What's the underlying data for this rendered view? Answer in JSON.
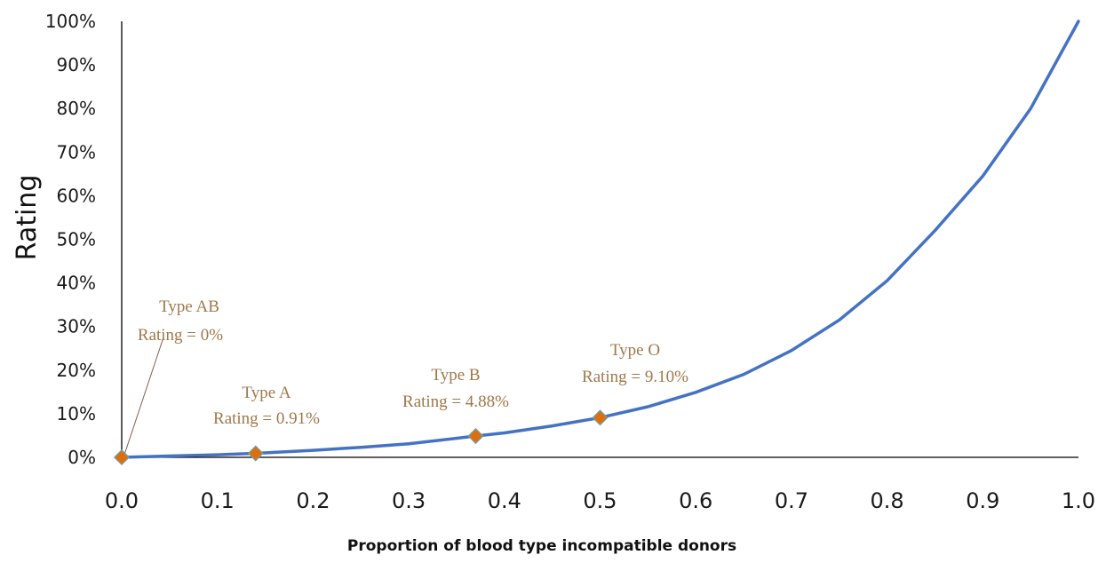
{
  "chart_data": {
    "type": "line",
    "xlabel": "Proportion of blood type incompatible donors",
    "ylabel": "Rating",
    "xlim": [
      0,
      1
    ],
    "ylim": [
      0,
      100
    ],
    "x_ticks": [
      "0.0",
      "0.1",
      "0.2",
      "0.3",
      "0.4",
      "0.5",
      "0.6",
      "0.7",
      "0.8",
      "0.9",
      "1.0"
    ],
    "y_ticks": [
      "0%",
      "10%",
      "20%",
      "30%",
      "40%",
      "50%",
      "60%",
      "70%",
      "80%",
      "90%",
      "100%"
    ],
    "curve": {
      "color": "#4472c4",
      "x": [
        0.0,
        0.05,
        0.1,
        0.14,
        0.2,
        0.25,
        0.3,
        0.37,
        0.4,
        0.45,
        0.5,
        0.55,
        0.6,
        0.65,
        0.7,
        0.75,
        0.8,
        0.85,
        0.9,
        0.95,
        1.0
      ],
      "y": [
        0.0,
        0.3,
        0.6,
        0.91,
        1.6,
        2.3,
        3.1,
        4.88,
        5.6,
        7.2,
        9.1,
        11.6,
        14.9,
        19.0,
        24.5,
        31.5,
        40.5,
        52.0,
        64.5,
        80.0,
        100.0
      ]
    },
    "markers": {
      "color": "#e36c0a",
      "points": [
        {
          "x": 0.0,
          "y": 0.0,
          "label": "Type AB",
          "rating": "Rating = 0%"
        },
        {
          "x": 0.14,
          "y": 0.91,
          "label": "Type A",
          "rating": "Rating = 0.91%"
        },
        {
          "x": 0.37,
          "y": 4.88,
          "label": "Type B",
          "rating": "Rating = 4.88%"
        },
        {
          "x": 0.5,
          "y": 9.1,
          "label": "Type O",
          "rating": "Rating = 9.10%"
        }
      ]
    },
    "grid": false
  }
}
